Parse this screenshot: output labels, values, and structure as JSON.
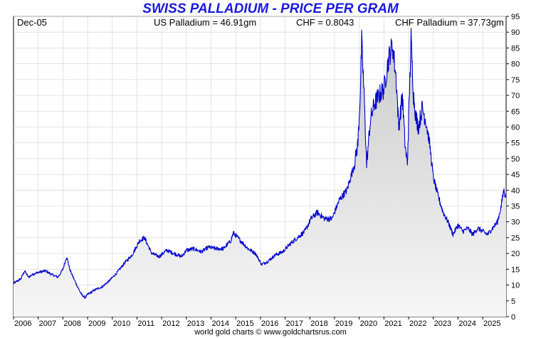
{
  "chart_data": {
    "type": "area",
    "title": "SWISS PALLADIUM - PRICE PER GRAM",
    "header": {
      "start_label": "Dec-05",
      "us_palladium": "US Palladium = 46.91gm",
      "chf": "CHF = 0.8043",
      "chf_palladium": "CHF Palladium = 37.73gm"
    },
    "footer": "world gold charts © www.goldchartsrus.com",
    "x_tick_labels": [
      "2006",
      "2007",
      "2008",
      "2009",
      "2010",
      "2011",
      "2012",
      "2013",
      "2014",
      "2015",
      "2016",
      "2017",
      "2018",
      "2019",
      "2020",
      "2021",
      "2022",
      "2023",
      "2024",
      "2025"
    ],
    "y_ticks": [
      0,
      5,
      10,
      15,
      20,
      25,
      30,
      35,
      40,
      45,
      50,
      55,
      60,
      65,
      70,
      75,
      80,
      85,
      90,
      95
    ],
    "ylim": [
      0,
      95
    ],
    "xlim": [
      2006.0,
      2025.95
    ],
    "grid": true,
    "line_color": "#0000cc",
    "title_color": "#1a1adc",
    "x": [
      2006.0,
      2006.3,
      2006.45,
      2006.6,
      2006.8,
      2007.0,
      2007.3,
      2007.5,
      2007.8,
      2008.0,
      2008.15,
      2008.3,
      2008.5,
      2008.75,
      2008.9,
      2009.0,
      2009.3,
      2009.6,
      2009.9,
      2010.2,
      2010.5,
      2010.8,
      2011.1,
      2011.3,
      2011.6,
      2011.9,
      2012.2,
      2012.5,
      2012.8,
      2013.0,
      2013.3,
      2013.6,
      2013.9,
      2014.2,
      2014.5,
      2014.8,
      2014.9,
      2015.2,
      2015.5,
      2015.8,
      2016.05,
      2016.3,
      2016.6,
      2016.9,
      2017.2,
      2017.5,
      2017.8,
      2018.05,
      2018.3,
      2018.6,
      2018.9,
      2019.2,
      2019.5,
      2019.8,
      2019.95,
      2020.05,
      2020.1,
      2020.2,
      2020.3,
      2020.45,
      2020.6,
      2020.8,
      2021.0,
      2021.2,
      2021.35,
      2021.5,
      2021.6,
      2021.75,
      2021.85,
      2021.95,
      2022.0,
      2022.1,
      2022.2,
      2022.3,
      2022.4,
      2022.55,
      2022.7,
      2022.85,
      2023.0,
      2023.2,
      2023.4,
      2023.6,
      2023.8,
      2024.0,
      2024.2,
      2024.4,
      2024.6,
      2024.8,
      2025.0,
      2025.2,
      2025.4,
      2025.6,
      2025.75,
      2025.85,
      2025.95
    ],
    "y": [
      10.5,
      12.0,
      14.5,
      12.5,
      13.5,
      14.0,
      14.5,
      13.5,
      12.5,
      15.0,
      19.0,
      14.5,
      11.0,
      7.0,
      6.0,
      7.0,
      8.5,
      9.5,
      11.5,
      14.0,
      17.0,
      19.5,
      24.0,
      25.0,
      20.0,
      19.0,
      21.0,
      20.0,
      19.0,
      21.0,
      21.5,
      20.5,
      22.0,
      21.5,
      21.5,
      24.0,
      26.5,
      24.0,
      21.5,
      20.0,
      16.5,
      17.5,
      19.5,
      20.5,
      23.0,
      25.0,
      27.0,
      31.0,
      33.0,
      31.0,
      31.0,
      37.0,
      40.0,
      48.0,
      55.0,
      72.0,
      87.0,
      70.0,
      48.0,
      62.0,
      67.0,
      70.0,
      72.0,
      82.0,
      86.0,
      75.0,
      60.0,
      70.0,
      55.0,
      48.0,
      62.0,
      88.0,
      70.0,
      63.0,
      60.0,
      66.0,
      62.0,
      55.0,
      44.0,
      38.0,
      33.0,
      30.0,
      26.0,
      29.0,
      27.0,
      28.0,
      26.0,
      28.0,
      27.0,
      26.0,
      28.0,
      30.0,
      35.0,
      40.0,
      37.7
    ]
  }
}
